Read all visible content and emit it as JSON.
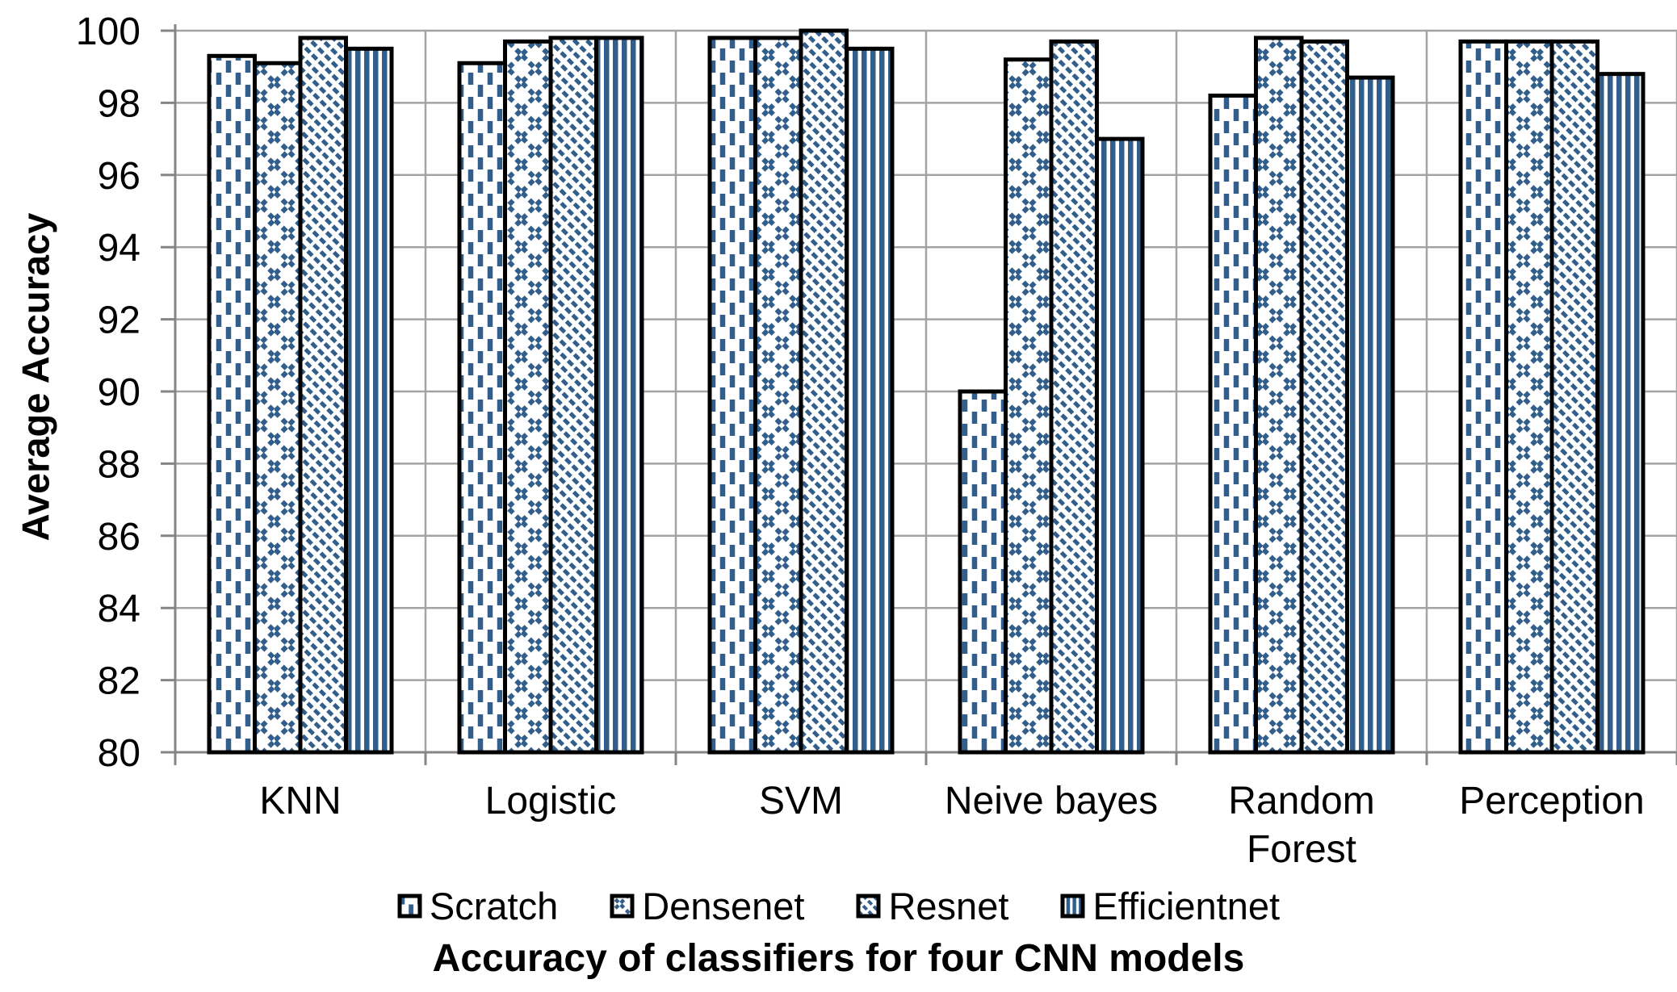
{
  "chart_data": {
    "type": "bar",
    "title": "Accuracy of classifiers for four CNN models",
    "xlabel": "",
    "ylabel": "Average Accuracy",
    "categories": [
      "KNN",
      "Logistic",
      "SVM",
      "Neive bayes",
      "Random Forest",
      "Perception"
    ],
    "category_label_lines": [
      [
        "KNN"
      ],
      [
        "Logistic"
      ],
      [
        "SVM"
      ],
      [
        "Neive bayes"
      ],
      [
        "Random",
        "Forest"
      ],
      [
        "Perception"
      ]
    ],
    "series": [
      {
        "name": "Scratch",
        "pattern": "vertical-dashes-icon",
        "values": [
          99.3,
          99.1,
          99.8,
          90.0,
          98.2,
          99.7
        ]
      },
      {
        "name": "Densenet",
        "pattern": "diagonal-weave-icon",
        "values": [
          99.1,
          99.7,
          99.8,
          99.2,
          99.8,
          99.7
        ]
      },
      {
        "name": "Resnet",
        "pattern": "diagonal-dots-icon",
        "values": [
          99.8,
          99.8,
          100.0,
          99.7,
          99.7,
          99.7
        ]
      },
      {
        "name": "Efficientnet",
        "pattern": "vertical-stripes-icon",
        "values": [
          99.5,
          99.8,
          99.5,
          97.0,
          98.7,
          98.8
        ]
      }
    ],
    "ylim": [
      80,
      100
    ],
    "yticks": [
      80,
      82,
      84,
      86,
      88,
      90,
      92,
      94,
      96,
      98,
      100
    ],
    "grid": "horizontal major gridlines and vertical category separator gridlines, ticks outside axes",
    "legend_position": "bottom",
    "colors": {
      "bar_fill_accent": "#315E8A",
      "bar_background": "#FFFFFF",
      "bar_border": "#000000",
      "gridline": "#A3A3A3",
      "axis": "#858585",
      "text": "#000000",
      "background": "#FFFFFF"
    }
  }
}
